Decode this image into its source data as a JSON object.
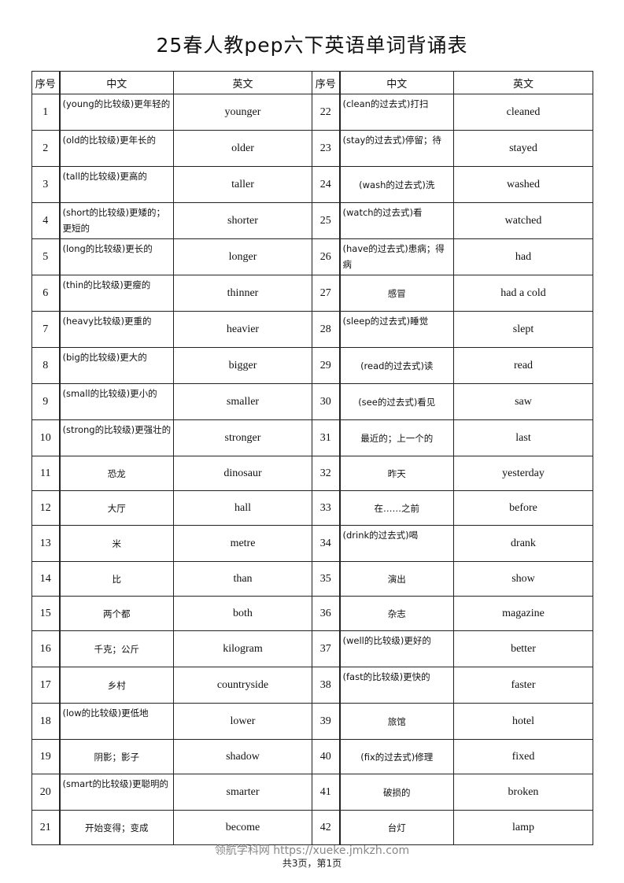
{
  "title": "25春人教pep六下英语单词背诵表",
  "headers": {
    "num": "序号",
    "cn": "中文",
    "en": "英文"
  },
  "left": [
    {
      "num": "1",
      "cn": "(young的比较级)更年轻的",
      "en": "younger"
    },
    {
      "num": "2",
      "cn": "(old的比较级)更年长的",
      "en": "older"
    },
    {
      "num": "3",
      "cn": "(tall的比较级)更高的",
      "en": "taller"
    },
    {
      "num": "4",
      "cn": "(short的比较级)更矮的；更短的",
      "en": "shorter"
    },
    {
      "num": "5",
      "cn": "(long的比较级)更长的",
      "en": "longer"
    },
    {
      "num": "6",
      "cn": "(thin的比较级)更瘦的",
      "en": "thinner"
    },
    {
      "num": "7",
      "cn": "(heavy比较级)更重的",
      "en": "heavier"
    },
    {
      "num": "8",
      "cn": "(big的比较级)更大的",
      "en": "bigger"
    },
    {
      "num": "9",
      "cn": "(small的比较级)更小的",
      "en": "smaller"
    },
    {
      "num": "10",
      "cn": "(strong的比较级)更强壮的",
      "en": "stronger"
    },
    {
      "num": "11",
      "cn": "恐龙",
      "en": "dinosaur"
    },
    {
      "num": "12",
      "cn": "大厅",
      "en": "hall"
    },
    {
      "num": "13",
      "cn": "米",
      "en": "metre"
    },
    {
      "num": "14",
      "cn": "比",
      "en": "than"
    },
    {
      "num": "15",
      "cn": "两个都",
      "en": "both"
    },
    {
      "num": "16",
      "cn": "千克；公斤",
      "en": "kilogram"
    },
    {
      "num": "17",
      "cn": "乡村",
      "en": "countryside"
    },
    {
      "num": "18",
      "cn": "(low的比较级)更低地",
      "en": "lower"
    },
    {
      "num": "19",
      "cn": "阴影；影子",
      "en": "shadow"
    },
    {
      "num": "20",
      "cn": "(smart的比较级)更聪明的",
      "en": "smarter"
    },
    {
      "num": "21",
      "cn": "开始变得；变成",
      "en": "become"
    }
  ],
  "right": [
    {
      "num": "22",
      "cn": "(clean的过去式)打扫",
      "en": "cleaned"
    },
    {
      "num": "23",
      "cn": "(stay的过去式)停留；待",
      "en": "stayed"
    },
    {
      "num": "24",
      "cn": "(wash的过去式)洗",
      "en": "washed"
    },
    {
      "num": "25",
      "cn": "(watch的过去式)看",
      "en": "watched"
    },
    {
      "num": "26",
      "cn": "(have的过去式)患病；得病",
      "en": "had"
    },
    {
      "num": "27",
      "cn": "感冒",
      "en": "had a cold"
    },
    {
      "num": "28",
      "cn": "(sleep的过去式)睡觉",
      "en": "slept"
    },
    {
      "num": "29",
      "cn": "(read的过去式)读",
      "en": "read"
    },
    {
      "num": "30",
      "cn": "(see的过去式)看见",
      "en": "saw"
    },
    {
      "num": "31",
      "cn": "最近的；上一个的",
      "en": "last"
    },
    {
      "num": "32",
      "cn": "昨天",
      "en": "yesterday"
    },
    {
      "num": "33",
      "cn": "在……之前",
      "en": "before"
    },
    {
      "num": "34",
      "cn": "(drink的过去式)喝",
      "en": "drank"
    },
    {
      "num": "35",
      "cn": "演出",
      "en": "show"
    },
    {
      "num": "36",
      "cn": "杂志",
      "en": "magazine"
    },
    {
      "num": "37",
      "cn": "(well的比较级)更好的",
      "en": "better"
    },
    {
      "num": "38",
      "cn": "(fast的比较级)更快的",
      "en": "faster"
    },
    {
      "num": "39",
      "cn": "旅馆",
      "en": "hotel"
    },
    {
      "num": "40",
      "cn": "(fix的过去式)修理",
      "en": "fixed"
    },
    {
      "num": "41",
      "cn": "破损的",
      "en": "broken"
    },
    {
      "num": "42",
      "cn": "台灯",
      "en": "lamp"
    }
  ],
  "footer": {
    "watermark": "领航学科网 https://xueke.jmkzh.com",
    "page_info": "共3页，第1页"
  }
}
